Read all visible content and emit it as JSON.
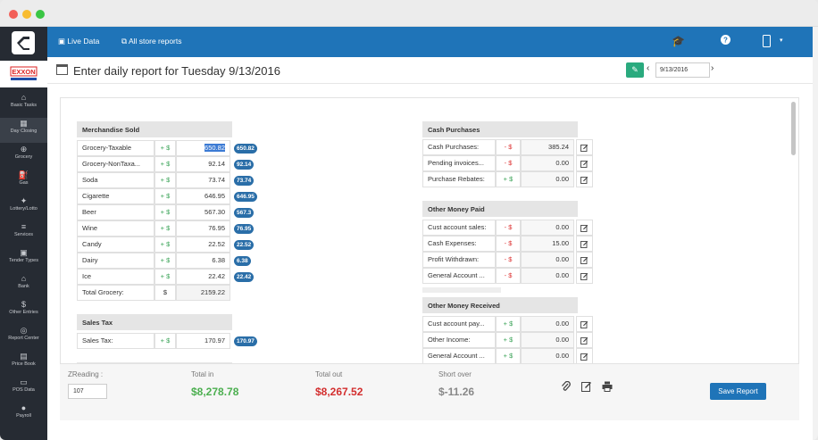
{
  "sidebar": {
    "items": [
      {
        "label": "Basic Tasks",
        "icon": "home-icon",
        "glyph": "⌂"
      },
      {
        "label": "Day Closing",
        "icon": "calculator-icon",
        "glyph": "▦"
      },
      {
        "label": "Grocery",
        "icon": "cart-icon",
        "glyph": "⊕"
      },
      {
        "label": "Gas",
        "icon": "fuel-pump-icon",
        "glyph": "⛽"
      },
      {
        "label": "Lottery/Lotto",
        "icon": "lottery-icon",
        "glyph": "✦"
      },
      {
        "label": "Services",
        "icon": "layers-icon",
        "glyph": "≡"
      },
      {
        "label": "Tender Types",
        "icon": "tender-icon",
        "glyph": "▣"
      },
      {
        "label": "Bank",
        "icon": "bank-icon",
        "glyph": "⌂"
      },
      {
        "label": "Other Entries",
        "icon": "dollar-icon",
        "glyph": "$"
      },
      {
        "label": "Report Center",
        "icon": "report-icon",
        "glyph": "◎"
      },
      {
        "label": "Price Book",
        "icon": "book-icon",
        "glyph": "▤"
      },
      {
        "label": "POS Data",
        "icon": "pos-icon",
        "glyph": "▭"
      },
      {
        "label": "Payroll",
        "icon": "payroll-icon",
        "glyph": "●"
      }
    ],
    "brand": "EXXON"
  },
  "topbar": {
    "live_data": "Live Data",
    "all_store_reports": "All store reports"
  },
  "header": {
    "title": "Enter daily report for Tuesday 9/13/2016",
    "date_value": "9/13/2016"
  },
  "merchandise": {
    "title": "Merchandise Sold",
    "rows": [
      {
        "label": "Grocery-Taxable",
        "sign": "+ $",
        "value": "650.82",
        "badge": "650.82"
      },
      {
        "label": "Grocery-NonTaxa...",
        "sign": "+ $",
        "value": "92.14",
        "badge": "92.14"
      },
      {
        "label": "Soda",
        "sign": "+ $",
        "value": "73.74",
        "badge": "73.74"
      },
      {
        "label": "Cigarette",
        "sign": "+ $",
        "value": "646.95",
        "badge": "646.95"
      },
      {
        "label": "Beer",
        "sign": "+ $",
        "value": "567.30",
        "badge": "567.3"
      },
      {
        "label": "Wine",
        "sign": "+ $",
        "value": "76.95",
        "badge": "76.95"
      },
      {
        "label": "Candy",
        "sign": "+ $",
        "value": "22.52",
        "badge": "22.52"
      },
      {
        "label": "Dairy",
        "sign": "+ $",
        "value": "6.38",
        "badge": "6.38"
      },
      {
        "label": "Ice",
        "sign": "+ $",
        "value": "22.42",
        "badge": "22.42"
      }
    ],
    "total_label": "Total Grocery:",
    "total_sign": "$",
    "total_value": "2159.22"
  },
  "sales_tax": {
    "title": "Sales Tax",
    "label": "Sales Tax:",
    "sign": "+ $",
    "value": "170.97",
    "badge": "170.97"
  },
  "cash_purchases": {
    "title": "Cash Purchases",
    "rows": [
      {
        "label": "Cash Purchases:",
        "sign": "- $",
        "value": "385.24"
      },
      {
        "label": "Pending invoices...",
        "sign": "- $",
        "value": "0.00"
      },
      {
        "label": "Purchase Rebates:",
        "sign": "+ $",
        "value": "0.00"
      }
    ]
  },
  "other_paid": {
    "title": "Other Money Paid",
    "rows": [
      {
        "label": "Cust account sales:",
        "sign": "- $",
        "value": "0.00"
      },
      {
        "label": "Cash Expenses:",
        "sign": "- $",
        "value": "15.00"
      },
      {
        "label": "Profit Withdrawn:",
        "sign": "- $",
        "value": "0.00"
      },
      {
        "label": "General Account ...",
        "sign": "- $",
        "value": "0.00"
      }
    ]
  },
  "other_received": {
    "title": "Other Money Received",
    "rows": [
      {
        "label": "Cust account pay...",
        "sign": "+ $",
        "value": "0.00"
      },
      {
        "label": "Other Income:",
        "sign": "+ $",
        "value": "0.00"
      },
      {
        "label": "General Account ...",
        "sign": "+ $",
        "value": "0.00"
      }
    ]
  },
  "footer": {
    "zreading_label": "ZReading :",
    "zreading_value": "107",
    "total_in_label": "Total in",
    "total_in_value": "$8,278.78",
    "total_out_label": "Total out",
    "total_out_value": "$8,267.52",
    "short_over_label": "Short over",
    "short_over_value": "$-11.26",
    "save_label": "Save Report"
  },
  "colors": {
    "accent": "#1f74b8",
    "total_in": "#4caf50",
    "total_out": "#d32f2f",
    "short_over": "#888888",
    "wrench_button": "#2aaa7e"
  }
}
